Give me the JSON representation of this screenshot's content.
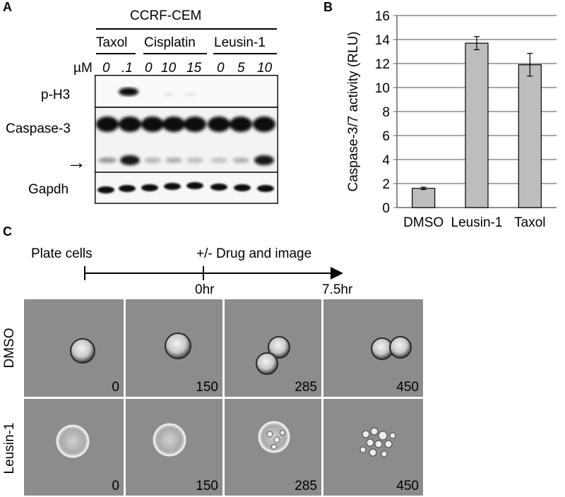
{
  "panelA": {
    "letter": "A",
    "cell_line": "CCRF-CEM",
    "groups": [
      "Taxol",
      "Cisplatin",
      "Leusin-1"
    ],
    "unit": "µM",
    "doses": [
      "0",
      ".1",
      "0",
      "10",
      "15",
      "0",
      "5",
      "10"
    ],
    "rows": [
      "p-H3",
      "Caspase-3",
      "Gapdh"
    ],
    "arrow": "→"
  },
  "panelB": {
    "letter": "B",
    "ylabel": "Caspase-3/7 activity (RLU)"
  },
  "chart_data": {
    "type": "bar",
    "categories": [
      "DMSO",
      "Leusin-1",
      "Taxol"
    ],
    "values": [
      1.6,
      13.7,
      11.9
    ],
    "errors": [
      0.1,
      0.55,
      0.95
    ],
    "ylabel": "Caspase-3/7 activity (RLU)",
    "ylim": [
      0,
      16
    ],
    "yticks": [
      0,
      2,
      4,
      6,
      8,
      10,
      12,
      14,
      16
    ],
    "grid": true,
    "bar_color": "#bdbdbd"
  },
  "panelC": {
    "letter": "C",
    "timeline": {
      "start_label": "Plate cells",
      "drug_label": "+/- Drug and image",
      "t0": "0hr",
      "tend": "7.5hr"
    },
    "row_labels": [
      "DMSO",
      "Leusin-1"
    ],
    "timepoints": [
      "0",
      "150",
      "285",
      "450"
    ]
  }
}
